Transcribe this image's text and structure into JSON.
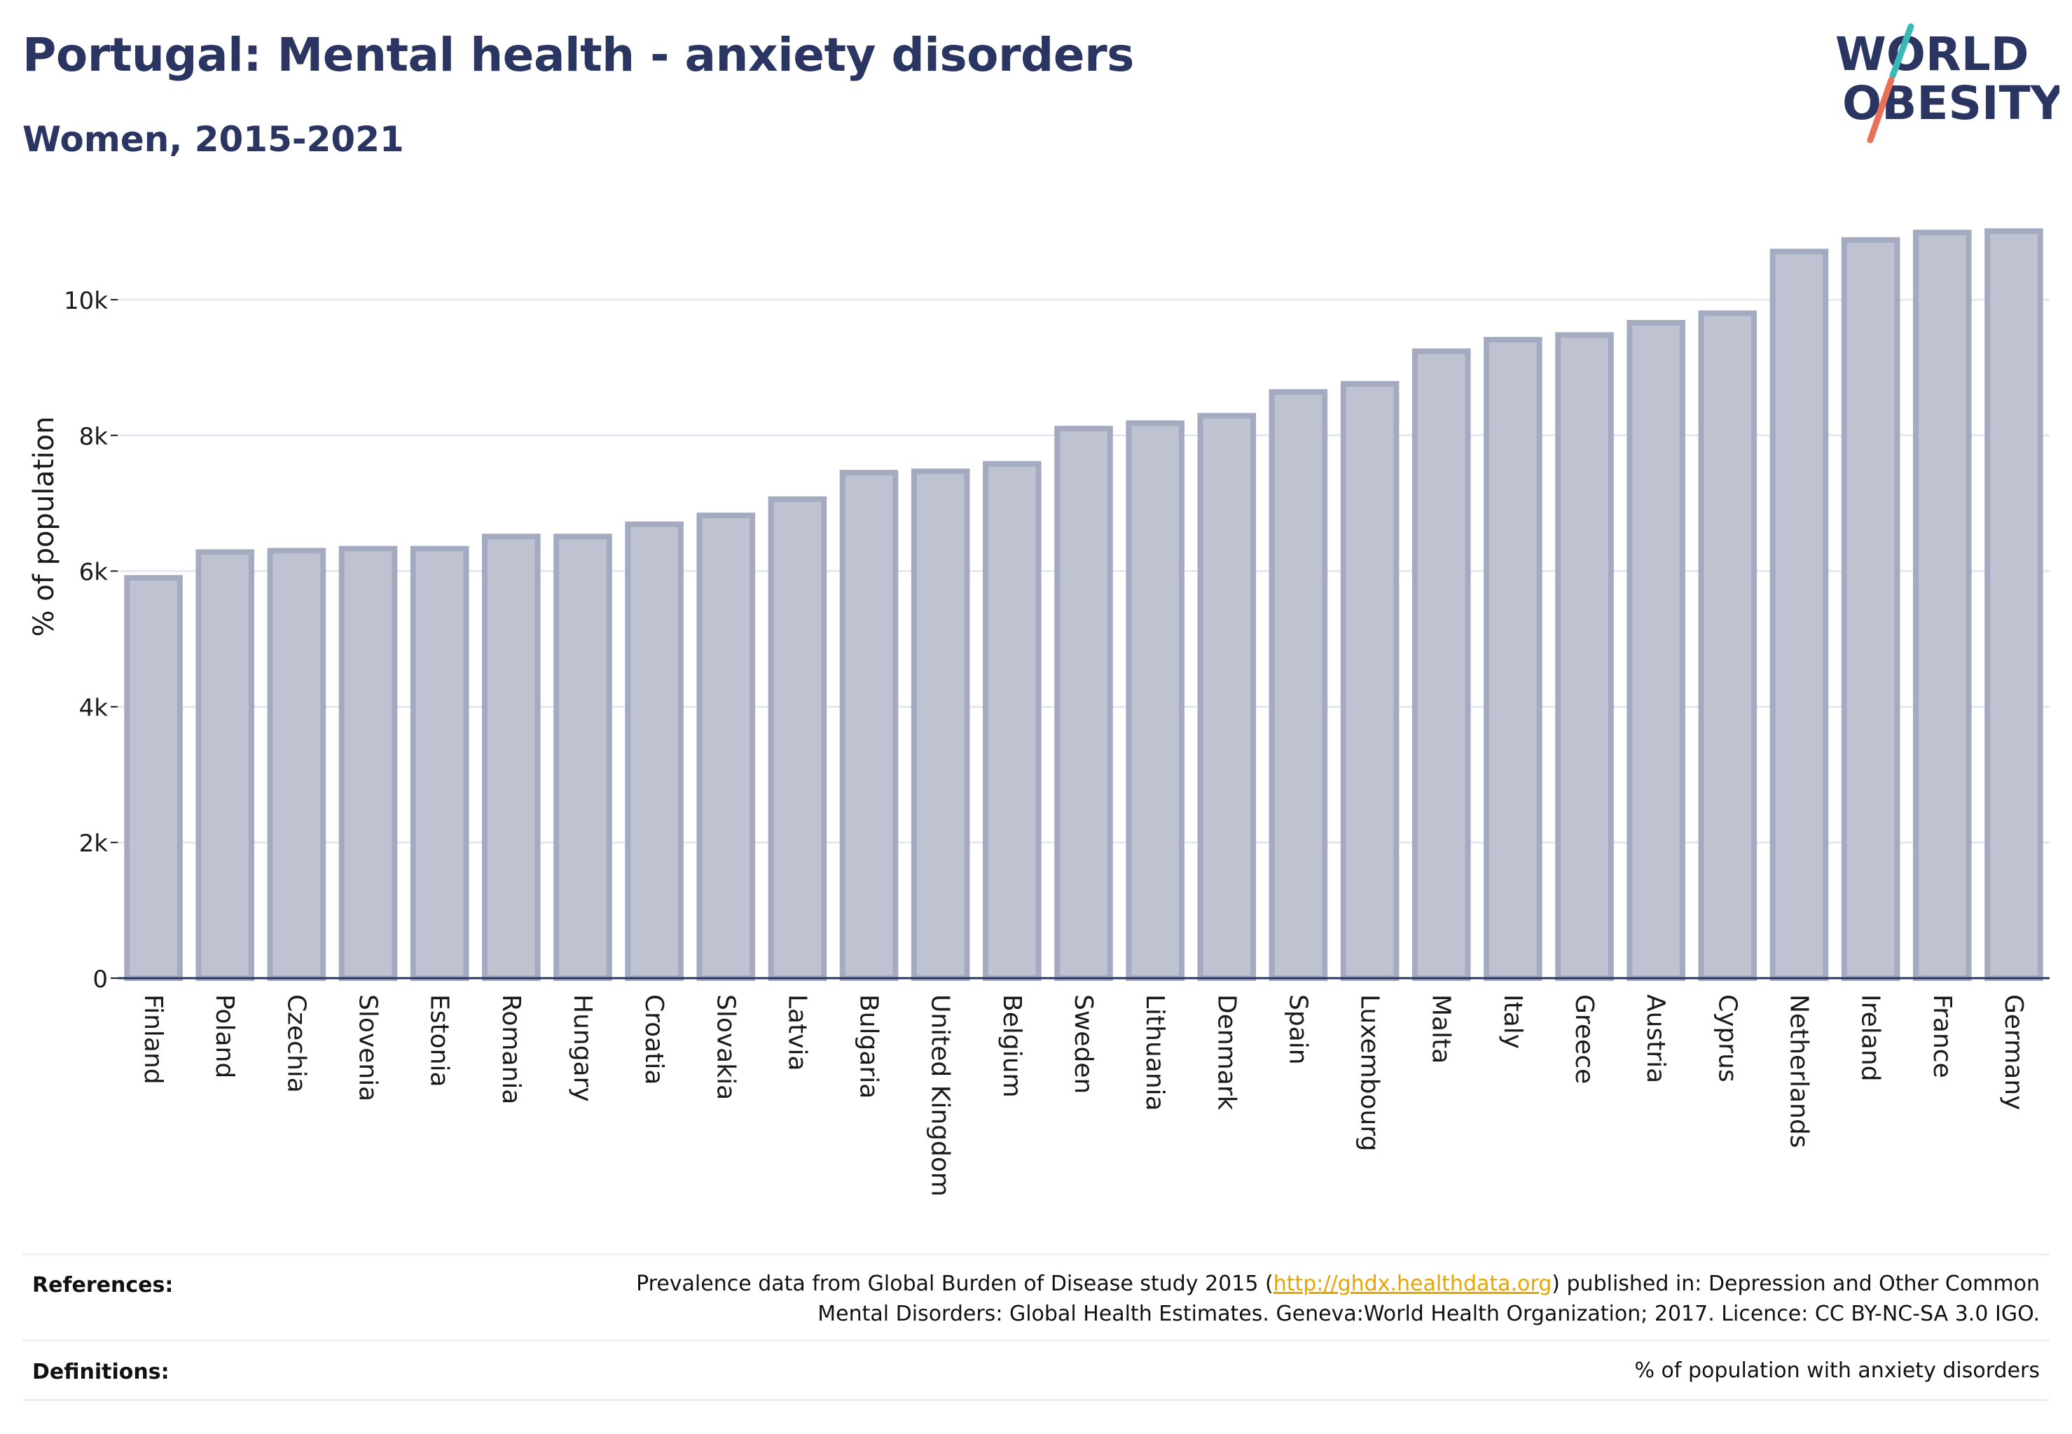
{
  "title": "Portugal: Mental health - anxiety disorders",
  "subtitle": "Women, 2015-2021",
  "logo": {
    "line1": "W",
    "o_char": "O",
    "line1_rest": "RLD",
    "line2_first": "O",
    "line2_rest": "BESITY"
  },
  "colors": {
    "title": "#2b3561",
    "bar_fill": "#bfc3d1",
    "bar_stroke": "#a4abc1",
    "grid": "#e6e8ef",
    "axis": "#2b3561",
    "logo_teal": "#3ab8b8",
    "logo_coral": "#e8705a"
  },
  "chart_data": {
    "type": "bar",
    "ylabel": "% of population",
    "xlabel": "",
    "ylim": [
      0,
      11500
    ],
    "yticks": [
      0,
      2000,
      4000,
      6000,
      8000,
      10000
    ],
    "ytick_labels": [
      "0",
      "2k",
      "4k",
      "6k",
      "8k",
      "10k"
    ],
    "grid": true,
    "categories": [
      "Finland",
      "Poland",
      "Czechia",
      "Slovenia",
      "Estonia",
      "Romania",
      "Hungary",
      "Croatia",
      "Slovakia",
      "Latvia",
      "Bulgaria",
      "United Kingdom",
      "Belgium",
      "Sweden",
      "Lithuania",
      "Denmark",
      "Spain",
      "Luxembourg",
      "Malta",
      "Italy",
      "Greece",
      "Austria",
      "Cyprus",
      "Netherlands",
      "Ireland",
      "France",
      "Germany"
    ],
    "values": [
      5900,
      6280,
      6300,
      6330,
      6330,
      6510,
      6510,
      6690,
      6820,
      7060,
      7450,
      7470,
      7580,
      8100,
      8180,
      8290,
      8640,
      8760,
      9240,
      9410,
      9480,
      9660,
      9800,
      10710,
      10880,
      10990,
      11010
    ]
  },
  "footer": {
    "references_label": "References:",
    "references_line1_pre": "Prevalence data from Global Burden of Disease study 2015 (",
    "references_link": "http://ghdx.healthdata.org",
    "references_line1_post": ") published in: Depression and Other Common",
    "references_line2": "Mental Disorders: Global Health Estimates. Geneva:World Health Organization; 2017. Licence: CC BY-NC-SA 3.0 IGO.",
    "definitions_label": "Definitions:",
    "definitions_text": "% of population with anxiety disorders"
  }
}
